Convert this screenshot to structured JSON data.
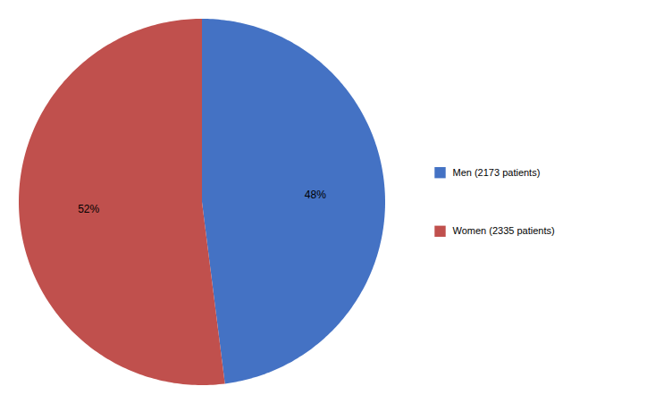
{
  "chart_data": {
    "type": "pie",
    "categories": [
      "Men (2173 patients)",
      "Women (2335 patients)"
    ],
    "values": [
      48,
      52
    ],
    "value_labels": [
      "48%",
      "52%"
    ],
    "colors": [
      "#4472C4",
      "#C0504D"
    ],
    "data_labels": true,
    "legend": "right"
  }
}
